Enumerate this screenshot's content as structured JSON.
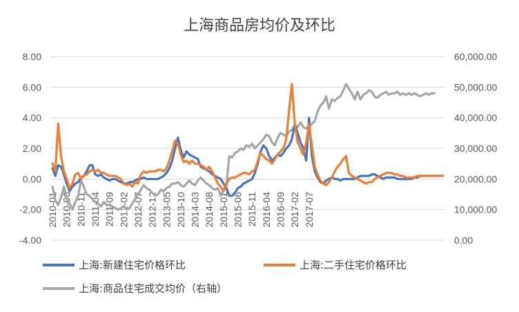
{
  "chart_data": {
    "type": "line",
    "title": "上海商品房均价及环比",
    "x_tick_labels": [
      "2010-01",
      "2010-06",
      "2010-11",
      "2011-04",
      "2011-09",
      "2012-02",
      "2012-07",
      "2012-12",
      "2013-05",
      "2013-10",
      "2014-03",
      "2014-08",
      "2015-01",
      "2015-06",
      "2015-11",
      "2016-04",
      "2016-09",
      "2017-02",
      "2017-07"
    ],
    "x_tick_every_months": 5,
    "x_start": "2010-01",
    "x_end": "2017-11",
    "y_left": {
      "ylim": [
        -4,
        8
      ],
      "ticks": [
        "-4.00",
        "-2.00",
        "0.00",
        "2.00",
        "4.00",
        "6.00",
        "8.00"
      ]
    },
    "y_right": {
      "ylim": [
        0,
        60000
      ],
      "ticks": [
        "0.00",
        "10,000.00",
        "20,000.00",
        "30,000.00",
        "40,000.00",
        "50,000.00",
        "60,000.00"
      ]
    },
    "legend_position": "bottom",
    "gridlines": "horizontal",
    "series": [
      {
        "name": "上海:新建住宅价格环比",
        "axis": "left",
        "color": "#4472C4",
        "values": [
          0.7,
          0.2,
          0.9,
          0.8,
          0.3,
          -0.3,
          -0.8,
          -0.5,
          -0.3,
          -0.2,
          0.1,
          0.2,
          0.5,
          0.9,
          0.9,
          0.3,
          0.2,
          0.3,
          0.1,
          0.0,
          -0.1,
          0.0,
          0.0,
          -0.1,
          -0.2,
          -0.3,
          -0.3,
          -0.2,
          -0.2,
          -0.1,
          0.0,
          0.0,
          0.1,
          0.0,
          0.0,
          0.0,
          0.0,
          0.0,
          0.1,
          0.2,
          0.4,
          0.7,
          1.2,
          2.0,
          2.7,
          1.9,
          1.4,
          1.8,
          1.6,
          1.5,
          1.4,
          1.3,
          0.8,
          0.7,
          0.6,
          0.5,
          0.3,
          0.2,
          0.1,
          0.0,
          -0.3,
          -0.6,
          -1.1,
          -1.1,
          -0.9,
          -0.6,
          -0.5,
          -0.3,
          -0.2,
          -0.1,
          0.0,
          0.4,
          1.0,
          1.8,
          2.2,
          2.0,
          1.5,
          1.2,
          1.4,
          1.6,
          1.5,
          1.7,
          2.0,
          2.2,
          2.6,
          3.6,
          3.0,
          2.4,
          2.0,
          1.2,
          4.0,
          1.5,
          0.5,
          0.1,
          -0.2,
          -0.3,
          -0.1,
          0.0,
          0.1,
          0.0,
          0.0,
          -0.1,
          0.0,
          0.0,
          0.0,
          0.0,
          0.0,
          0.1,
          0.2,
          0.2,
          0.2,
          0.2,
          0.3,
          0.3,
          0.2,
          0.1,
          0.0,
          0.1,
          0.1,
          0.1,
          0.1,
          0.0,
          0.0,
          0.0,
          0.0,
          0.0,
          0.0,
          0.1,
          0.1,
          0.2,
          0.2,
          0.2,
          0.2,
          0.2,
          0.2,
          0.2,
          0.2,
          0.2
        ]
      },
      {
        "name": "上海:二手住宅价格环比",
        "axis": "left",
        "color": "#ED7D31",
        "values": [
          1.0,
          0.5,
          3.6,
          1.5,
          0.5,
          0.0,
          -0.6,
          -0.3,
          0.3,
          0.4,
          0.0,
          0.2,
          0.3,
          0.5,
          0.6,
          0.5,
          0.6,
          0.4,
          0.4,
          0.3,
          0.2,
          0.2,
          0.2,
          0.1,
          0.0,
          -0.3,
          -0.4,
          -0.3,
          -0.5,
          -0.2,
          -0.3,
          0.3,
          0.5,
          0.4,
          0.5,
          0.5,
          0.5,
          0.6,
          0.6,
          0.5,
          0.7,
          1.2,
          1.8,
          2.5,
          2.3,
          1.6,
          1.1,
          1.2,
          1.0,
          1.2,
          1.0,
          1.0,
          0.9,
          0.8,
          0.6,
          0.8,
          0.5,
          0.1,
          -0.3,
          -0.5,
          -0.8,
          -0.3,
          0.0,
          0.1,
          0.1,
          0.2,
          0.3,
          0.4,
          0.4,
          0.3,
          0.5,
          0.6,
          1.2,
          1.7,
          1.5,
          1.3,
          1.2,
          1.0,
          1.3,
          1.6,
          1.8,
          2.0,
          2.6,
          4.5,
          6.2,
          3.6,
          2.4,
          2.0,
          1.6,
          2.4,
          3.6,
          2.2,
          0.8,
          0.3,
          -0.1,
          -0.3,
          -0.4,
          -0.2,
          0.1,
          0.5,
          0.8,
          1.0,
          1.3,
          1.5,
          0.4,
          0.2,
          0.1,
          0.0,
          -0.1,
          -0.2,
          -0.3,
          -0.2,
          -0.2,
          0.0,
          0.1,
          0.2,
          0.3,
          0.4,
          0.4,
          0.4,
          0.3,
          0.3,
          0.2,
          0.2,
          0.1,
          0.1,
          0.1,
          0.1,
          0.2,
          0.2,
          0.2,
          0.2,
          0.2,
          0.2,
          0.2,
          0.2,
          0.2,
          0.2
        ]
      },
      {
        "name": "上海:商品住宅成交均价（右轴）",
        "axis": "right",
        "color": "#A5A5A5",
        "values": [
          17500,
          13000,
          11500,
          14000,
          17500,
          13500,
          12000,
          10000,
          12500,
          14500,
          19500,
          17500,
          15000,
          14500,
          13500,
          12500,
          12000,
          11000,
          12500,
          11500,
          11500,
          11000,
          10500,
          10000,
          10500,
          11000,
          10000,
          10500,
          12000,
          13500,
          15000,
          16500,
          18000,
          17000,
          16500,
          15500,
          14500,
          15000,
          16500,
          16000,
          17000,
          17500,
          18500,
          18500,
          19000,
          18000,
          17500,
          18500,
          19500,
          18500,
          18000,
          19500,
          20500,
          19500,
          18500,
          18000,
          17000,
          16500,
          17000,
          14500,
          16500,
          17500,
          27500,
          27000,
          28500,
          29000,
          30000,
          29500,
          31000,
          30500,
          31500,
          30000,
          31000,
          32000,
          33000,
          34500,
          34000,
          32000,
          31000,
          33500,
          35000,
          34500,
          34000,
          35500,
          36000,
          37500,
          37000,
          38500,
          37000,
          36500,
          37000,
          38000,
          39000,
          42000,
          44000,
          45000,
          47000,
          43000,
          46000,
          45500,
          46500,
          47000,
          49000,
          51000,
          49500,
          48000,
          46000,
          48500,
          46000,
          47500,
          48000,
          49000,
          48500,
          47000,
          46500,
          47500,
          48000,
          48500,
          47500,
          48000,
          48000,
          48500,
          47500,
          48000,
          47500,
          48000,
          47500,
          48000,
          47500,
          47000,
          47500,
          48000,
          47500,
          48000,
          48000
        ]
      }
    ]
  }
}
